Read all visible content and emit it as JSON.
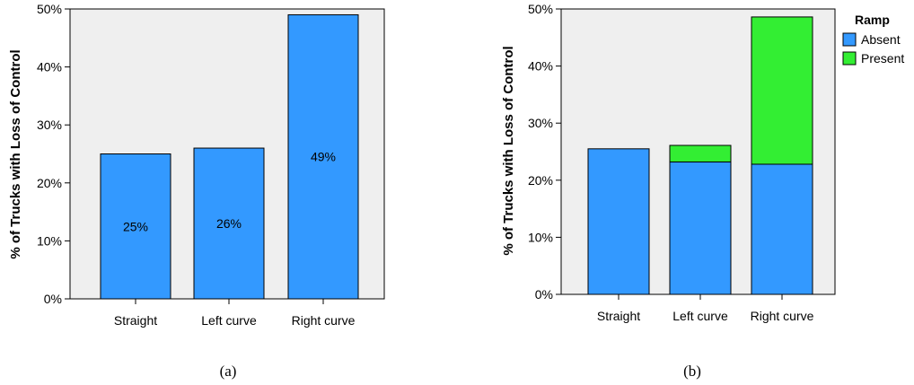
{
  "colors": {
    "plot_bg": "#efefef",
    "absent": "#3399ff",
    "present": "#33ee33",
    "bar_stroke": "#000000"
  },
  "chart_data": [
    {
      "type": "bar",
      "caption": "(a)",
      "ylabel": "% of Trucks with Loss of Control",
      "ylim": [
        0,
        50
      ],
      "yticks": [
        "0%",
        "10%",
        "20%",
        "30%",
        "40%",
        "50%"
      ],
      "categories": [
        "Straight",
        "Left curve",
        "Right curve"
      ],
      "values": [
        25,
        26,
        49
      ],
      "data_labels": [
        "25%",
        "26%",
        "49%"
      ]
    },
    {
      "type": "bar",
      "stacked": true,
      "caption": "(b)",
      "ylabel": "% of Trucks with Loss of Control",
      "ylim": [
        0,
        50
      ],
      "yticks": [
        "0%",
        "10%",
        "20%",
        "30%",
        "40%",
        "50%"
      ],
      "categories": [
        "Straight",
        "Left curve",
        "Right curve"
      ],
      "legend_title": "Ramp",
      "legend_position": "right",
      "series": [
        {
          "name": "Absent",
          "values": [
            25.5,
            23.2,
            22.8
          ]
        },
        {
          "name": "Present",
          "values": [
            0,
            2.9,
            25.8
          ]
        }
      ]
    }
  ]
}
